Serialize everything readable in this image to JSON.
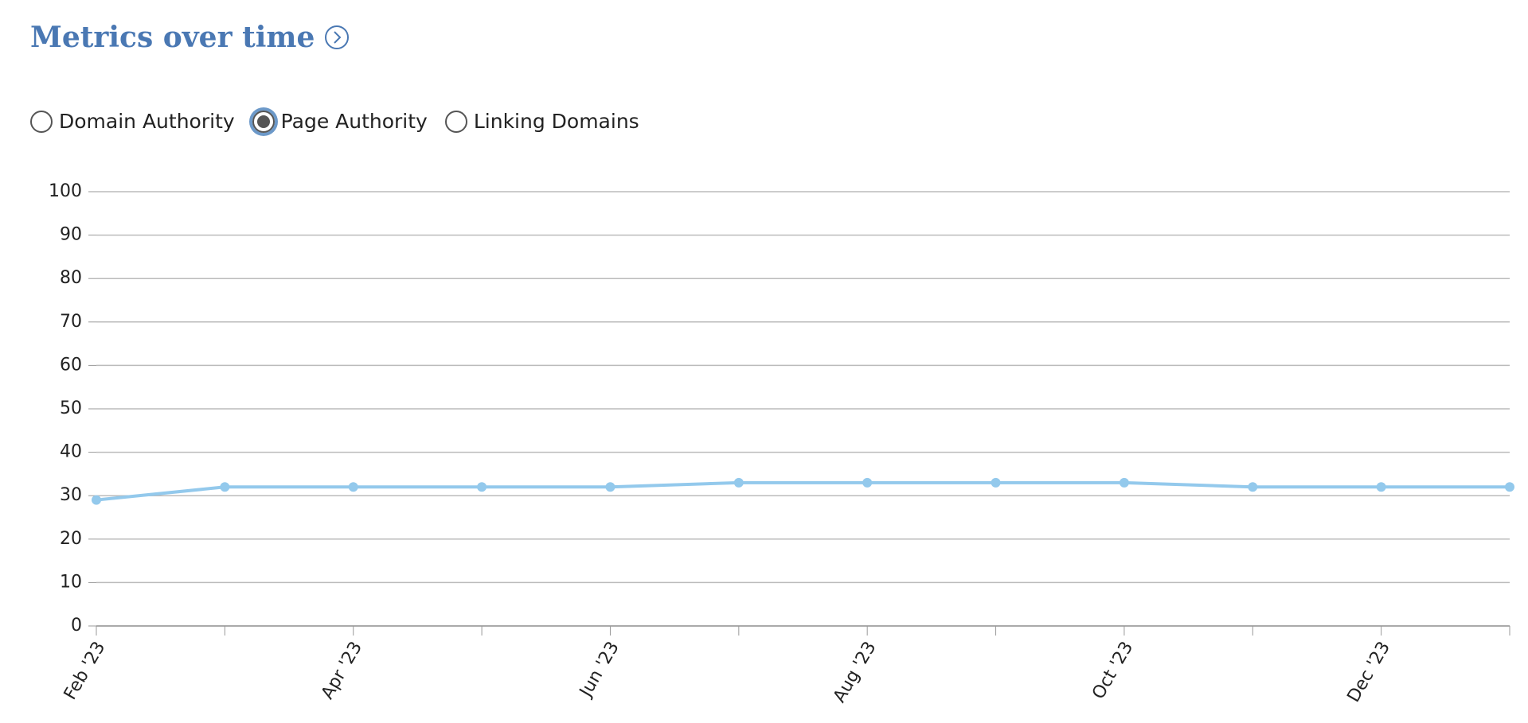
{
  "header": {
    "title": "Metrics over time"
  },
  "controls": {
    "radios": [
      {
        "label": "Domain Authority",
        "selected": false
      },
      {
        "label": "Page Authority",
        "selected": true
      },
      {
        "label": "Linking Domains",
        "selected": false
      }
    ]
  },
  "chart_data": {
    "type": "line",
    "categories": [
      "Feb '23",
      null,
      "Apr '23",
      null,
      "Jun '23",
      null,
      "Aug '23",
      null,
      "Oct '23",
      null,
      "Dec '23",
      null
    ],
    "values": [
      29,
      32,
      32,
      32,
      32,
      33,
      33,
      33,
      33,
      32,
      32,
      32
    ],
    "color": "#93c9ec",
    "ylim": [
      0,
      100
    ],
    "yticks": [
      0,
      10,
      20,
      30,
      40,
      50,
      60,
      70,
      80,
      90,
      100
    ],
    "grid": true
  }
}
